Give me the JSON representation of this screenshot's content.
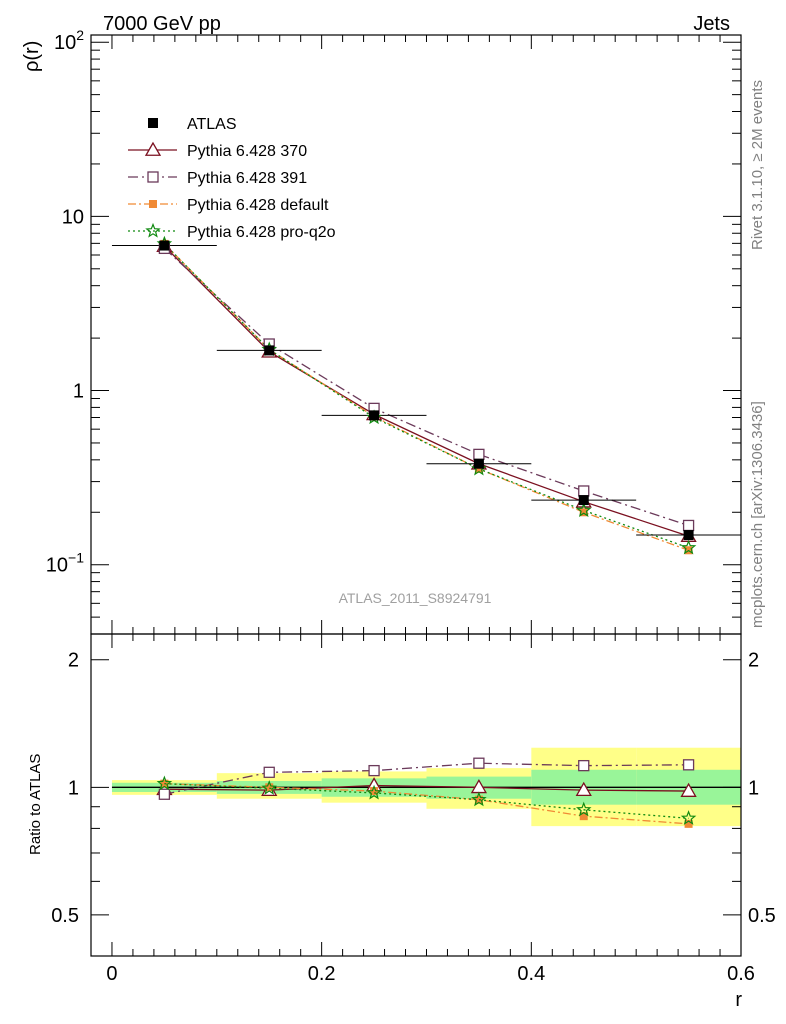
{
  "header": {
    "left": "7000 GeV pp",
    "right": "Jets"
  },
  "side_labels": {
    "rivet": "Rivet 3.1.10, ≥ 2M events",
    "mcplots": "mcplots.cern.ch [arXiv:1306.3436]"
  },
  "watermark": "ATLAS_2011_S8924791",
  "axes": {
    "top_ylabel": "ρ(r)",
    "bottom_ylabel": "Ratio to ATLAS",
    "xlabel": "r",
    "x_ticks": [
      "0",
      "0.2",
      "0.4",
      "0.6"
    ],
    "top_y_ticks": [
      {
        "value": 100,
        "base": "10",
        "exp": "2"
      },
      {
        "value": 10,
        "base": "10",
        "exp": ""
      },
      {
        "value": 1,
        "base": "1",
        "exp": ""
      },
      {
        "value": 0.1,
        "base": "10",
        "exp": "−1"
      }
    ],
    "ratio_ticks": [
      "0.5",
      "1",
      "2"
    ]
  },
  "chart_data": [
    {
      "type": "line",
      "panel": "main",
      "y_scale": "log",
      "xlim": [
        -0.02,
        0.6
      ],
      "ylim": [
        0.04,
        110
      ],
      "x": [
        0.05,
        0.15,
        0.25,
        0.35,
        0.45,
        0.55
      ],
      "data": {
        "name": "ATLAS",
        "values": [
          6.8,
          1.7,
          0.72,
          0.38,
          0.235,
          0.148
        ],
        "x_err": 0.05,
        "color": "#000000"
      },
      "series": [
        {
          "name": "Pythia 6.428 370",
          "values": [
            6.75,
            1.67,
            0.73,
            0.38,
            0.23,
            0.146
          ],
          "color": "#7b1020",
          "marker": "triangle-open",
          "dash": ""
        },
        {
          "name": "Pythia 6.428 391",
          "values": [
            6.55,
            1.85,
            0.79,
            0.43,
            0.265,
            0.168
          ],
          "color": "#6b3a5a",
          "marker": "square-open",
          "dash": "10,4,2,4"
        },
        {
          "name": "Pythia 6.428 default",
          "values": [
            6.95,
            1.72,
            0.71,
            0.355,
            0.2,
            0.121
          ],
          "color": "#f08a35",
          "marker": "square-filled",
          "dash": "8,3,2,3"
        },
        {
          "name": "Pythia 6.428 pro-q2o",
          "values": [
            6.95,
            1.72,
            0.7,
            0.355,
            0.205,
            0.125
          ],
          "color": "#108a10",
          "marker": "star",
          "dash": "2,3"
        }
      ]
    },
    {
      "type": "line",
      "panel": "ratio",
      "y_scale": "log",
      "xlim": [
        -0.02,
        0.6
      ],
      "ylim": [
        0.4,
        2.3
      ],
      "x": [
        0.05,
        0.15,
        0.25,
        0.35,
        0.45,
        0.55
      ],
      "bands": {
        "edges": [
          0.0,
          0.1,
          0.2,
          0.3,
          0.4,
          0.5,
          0.6
        ],
        "inner": [
          [
            0.975,
            1.025
          ],
          [
            0.965,
            1.035
          ],
          [
            0.95,
            1.05
          ],
          [
            0.94,
            1.06
          ],
          [
            0.91,
            1.1
          ],
          [
            0.91,
            1.1
          ]
        ],
        "outer": [
          [
            0.96,
            1.04
          ],
          [
            0.94,
            1.08
          ],
          [
            0.92,
            1.09
          ],
          [
            0.89,
            1.11
          ],
          [
            0.81,
            1.24
          ],
          [
            0.81,
            1.24
          ]
        ],
        "inner_color": "#99f599",
        "outer_color": "#ffff88"
      },
      "series": [
        {
          "name": "Pythia 6.428 370",
          "values": [
            0.99,
            0.985,
            1.01,
            1.0,
            0.985,
            0.98
          ],
          "color": "#7b1020",
          "marker": "triangle-open",
          "dash": ""
        },
        {
          "name": "Pythia 6.428 391",
          "values": [
            0.963,
            1.085,
            1.095,
            1.14,
            1.125,
            1.13
          ],
          "color": "#6b3a5a",
          "marker": "square-open",
          "dash": "10,4,2,4"
        },
        {
          "name": "Pythia 6.428 default",
          "values": [
            1.02,
            1.0,
            0.98,
            0.935,
            0.855,
            0.82
          ],
          "color": "#f08a35",
          "marker": "square-filled",
          "dash": "8,3,2,3"
        },
        {
          "name": "Pythia 6.428 pro-q2o",
          "values": [
            1.02,
            0.995,
            0.97,
            0.935,
            0.885,
            0.845
          ],
          "color": "#108a10",
          "marker": "star",
          "dash": "2,3"
        }
      ]
    }
  ]
}
